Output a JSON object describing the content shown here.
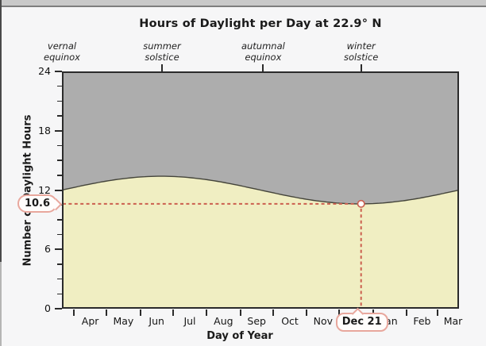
{
  "header": {
    "title": "Hours of Daylight per Day at 22.9° N"
  },
  "callouts": {
    "value_label": "10.6",
    "date_label": "Dec 21"
  },
  "chart_data": {
    "type": "area",
    "title": "Hours of Daylight per Day at 22.9° N",
    "xlabel": "Day of Year",
    "ylabel": "Number of Daylight Hours",
    "ylim": [
      0,
      24
    ],
    "yticks": [
      0,
      6,
      12,
      18,
      24
    ],
    "y_minor_step": 1.5,
    "x_start": "vernal equinox (Mar 21)",
    "x_domain_days": 365,
    "month_labels": [
      "Apr",
      "May",
      "Jun",
      "Jul",
      "Aug",
      "Sep",
      "Oct",
      "Nov",
      "Dec",
      "Jan",
      "Feb",
      "Mar"
    ],
    "month_label_days": [
      26,
      56.5,
      87,
      117.5,
      148.5,
      179,
      209.5,
      240,
      270.5,
      301.5,
      331,
      359.5
    ],
    "month_tick_days": [
      11,
      41,
      72,
      102,
      133,
      164,
      194,
      225,
      255,
      286,
      317,
      345
    ],
    "annotations": [
      {
        "line1": "vernal",
        "line2": "equinox",
        "day": 0,
        "tick": false
      },
      {
        "line1": "summer",
        "line2": "solstice",
        "day": 92,
        "tick": true
      },
      {
        "line1": "autumnal",
        "line2": "equinox",
        "day": 185,
        "tick": true
      },
      {
        "line1": "winter",
        "line2": "solstice",
        "day": 275,
        "tick": true
      }
    ],
    "series": [
      {
        "name": "daylight hours",
        "model": "sinusoid",
        "mean_hours": 12.0,
        "amplitude_hours": 1.4,
        "period_days": 365,
        "key_points": [
          {
            "day": 0,
            "label": "vernal equinox",
            "hours": 12.0
          },
          {
            "day": 92,
            "label": "summer solstice",
            "hours": 13.4
          },
          {
            "day": 185,
            "label": "autumnal equinox",
            "hours": 12.0
          },
          {
            "day": 275,
            "label": "winter solstice",
            "hours": 10.6
          },
          {
            "day": 365,
            "label": "vernal equinox",
            "hours": 12.0
          }
        ]
      }
    ],
    "highlight": {
      "day": 275,
      "date": "Dec 21",
      "hours": 10.6
    },
    "colors": {
      "area_above": "#adadad",
      "area_below": "#f0eec2",
      "curve": "#44443a",
      "axis": "#2b2b2b",
      "dash": "#cb5f4f",
      "badge_border": "#e8a79d",
      "badge_bg": "#fffdfc"
    }
  }
}
